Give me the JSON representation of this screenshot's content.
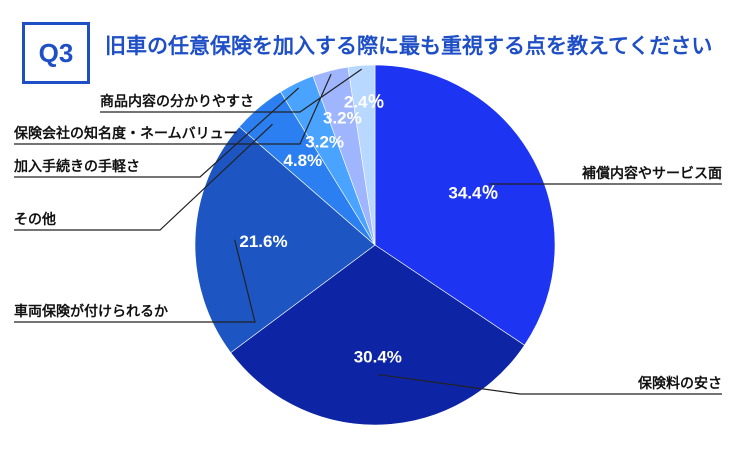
{
  "header": {
    "question_label": "Q3",
    "title": "旧車の任意保険を加入する際に最も重視する点を教えてください"
  },
  "colors": {
    "accent": "#1f4fc6"
  },
  "chart_data": {
    "type": "pie",
    "title": "旧車の任意保険を加入する際に最も重視する点を教えてください",
    "start": "top",
    "direction": "clockwise",
    "slices": [
      {
        "label": "補償内容やサービス面",
        "value": 34.4,
        "value_label": "34.4％",
        "color": "#1d34f2"
      },
      {
        "label": "保険料の安さ",
        "value": 30.4,
        "value_label": "30.4%",
        "color": "#0d24a5"
      },
      {
        "label": "車両保険が付けられるか",
        "value": 21.6,
        "value_label": "21.6%",
        "color": "#1d56c2"
      },
      {
        "label": "その他",
        "value": 4.8,
        "value_label": "4.8%",
        "color": "#2b7ff0"
      },
      {
        "label": "加入手続きの手軽さ",
        "value": 3.2,
        "value_label": "3.2%",
        "color": "#4aa4ff"
      },
      {
        "label": "保険会社の知名度・ネームバリュー",
        "value": 3.2,
        "value_label": "3.2%",
        "color": "#9fb6ff"
      },
      {
        "label": "商品内容の分かりやすさ",
        "value": 2.4,
        "value_label": "2.4％",
        "color": "#b9d8ff"
      }
    ]
  }
}
